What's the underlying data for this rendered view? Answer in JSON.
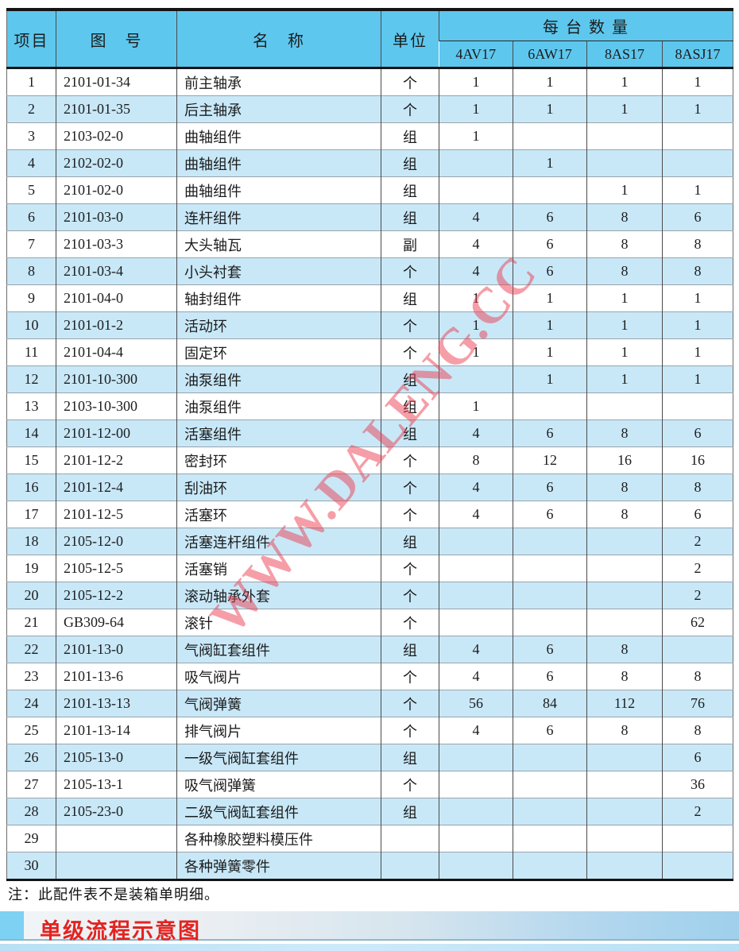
{
  "watermark": "WWW.DALENG.CC",
  "note": "注：此配件表不是装箱单明细。",
  "section_title": "单级流程示意图",
  "colors": {
    "header_blue": "#5ec7ee",
    "stripe_blue": "#c8e8f8",
    "marker_blue": "#7dd2f3",
    "title_red": "#e32320",
    "watermark_red": "rgba(235,62,80,0.5)",
    "bottom_bar_blue": "#bfe3f5"
  },
  "table": {
    "headers": {
      "item": "项目",
      "drawing_no": "图　号",
      "name": "名　称",
      "unit": "单位",
      "qty_group": "每 台 数 量",
      "models": [
        "4AV17",
        "6AW17",
        "8AS17",
        "8ASJ17"
      ]
    },
    "rows": [
      {
        "item": "1",
        "drawing": "2101-01-34",
        "name": "前主轴承",
        "unit": "个",
        "qty": [
          "1",
          "1",
          "1",
          "1"
        ]
      },
      {
        "item": "2",
        "drawing": "2101-01-35",
        "name": "后主轴承",
        "unit": "个",
        "qty": [
          "1",
          "1",
          "1",
          "1"
        ]
      },
      {
        "item": "3",
        "drawing": "2103-02-0",
        "name": "曲轴组件",
        "unit": "组",
        "qty": [
          "1",
          "",
          "",
          ""
        ]
      },
      {
        "item": "4",
        "drawing": "2102-02-0",
        "name": "曲轴组件",
        "unit": "组",
        "qty": [
          "",
          "1",
          "",
          ""
        ]
      },
      {
        "item": "5",
        "drawing": "2101-02-0",
        "name": "曲轴组件",
        "unit": "组",
        "qty": [
          "",
          "",
          "1",
          "1"
        ]
      },
      {
        "item": "6",
        "drawing": "2101-03-0",
        "name": "连杆组件",
        "unit": "组",
        "qty": [
          "4",
          "6",
          "8",
          "6"
        ]
      },
      {
        "item": "7",
        "drawing": "2101-03-3",
        "name": "大头轴瓦",
        "unit": "副",
        "qty": [
          "4",
          "6",
          "8",
          "8"
        ]
      },
      {
        "item": "8",
        "drawing": "2101-03-4",
        "name": "小头衬套",
        "unit": "个",
        "qty": [
          "4",
          "6",
          "8",
          "8"
        ]
      },
      {
        "item": "9",
        "drawing": "2101-04-0",
        "name": "轴封组件",
        "unit": "组",
        "qty": [
          "1",
          "1",
          "1",
          "1"
        ]
      },
      {
        "item": "10",
        "drawing": "2101-01-2",
        "name": "活动环",
        "unit": "个",
        "qty": [
          "1",
          "1",
          "1",
          "1"
        ]
      },
      {
        "item": "11",
        "drawing": "2101-04-4",
        "name": "固定环",
        "unit": "个",
        "qty": [
          "1",
          "1",
          "1",
          "1"
        ]
      },
      {
        "item": "12",
        "drawing": "2101-10-300",
        "name": "油泵组件",
        "unit": "组",
        "qty": [
          "",
          "1",
          "1",
          "1"
        ]
      },
      {
        "item": "13",
        "drawing": "2103-10-300",
        "name": "油泵组件",
        "unit": "组",
        "qty": [
          "1",
          "",
          "",
          ""
        ]
      },
      {
        "item": "14",
        "drawing": "2101-12-00",
        "name": "活塞组件",
        "unit": "组",
        "qty": [
          "4",
          "6",
          "8",
          "6"
        ]
      },
      {
        "item": "15",
        "drawing": "2101-12-2",
        "name": "密封环",
        "unit": "个",
        "qty": [
          "8",
          "12",
          "16",
          "16"
        ]
      },
      {
        "item": "16",
        "drawing": "2101-12-4",
        "name": "刮油环",
        "unit": "个",
        "qty": [
          "4",
          "6",
          "8",
          "8"
        ]
      },
      {
        "item": "17",
        "drawing": "2101-12-5",
        "name": "活塞环",
        "unit": "个",
        "qty": [
          "4",
          "6",
          "8",
          "6"
        ]
      },
      {
        "item": "18",
        "drawing": "2105-12-0",
        "name": "活塞连杆组件",
        "unit": "组",
        "qty": [
          "",
          "",
          "",
          "2"
        ]
      },
      {
        "item": "19",
        "drawing": "2105-12-5",
        "name": "活塞销",
        "unit": "个",
        "qty": [
          "",
          "",
          "",
          "2"
        ]
      },
      {
        "item": "20",
        "drawing": "2105-12-2",
        "name": "滚动轴承外套",
        "unit": "个",
        "qty": [
          "",
          "",
          "",
          "2"
        ]
      },
      {
        "item": "21",
        "drawing": "GB309-64",
        "name": "滚针",
        "unit": "个",
        "qty": [
          "",
          "",
          "",
          "62"
        ]
      },
      {
        "item": "22",
        "drawing": "2101-13-0",
        "name": "气阀缸套组件",
        "unit": "组",
        "qty": [
          "4",
          "6",
          "8",
          ""
        ]
      },
      {
        "item": "23",
        "drawing": "2101-13-6",
        "name": "吸气阀片",
        "unit": "个",
        "qty": [
          "4",
          "6",
          "8",
          "8"
        ]
      },
      {
        "item": "24",
        "drawing": "2101-13-13",
        "name": "气阀弹簧",
        "unit": "个",
        "qty": [
          "56",
          "84",
          "112",
          "76"
        ]
      },
      {
        "item": "25",
        "drawing": "2101-13-14",
        "name": "排气阀片",
        "unit": "个",
        "qty": [
          "4",
          "6",
          "8",
          "8"
        ]
      },
      {
        "item": "26",
        "drawing": "2105-13-0",
        "name": "一级气阀缸套组件",
        "unit": "组",
        "qty": [
          "",
          "",
          "",
          "6"
        ]
      },
      {
        "item": "27",
        "drawing": "2105-13-1",
        "name": "吸气阀弹簧",
        "unit": "个",
        "qty": [
          "",
          "",
          "",
          "36"
        ]
      },
      {
        "item": "28",
        "drawing": "2105-23-0",
        "name": "二级气阀缸套组件",
        "unit": "组",
        "qty": [
          "",
          "",
          "",
          "2"
        ]
      },
      {
        "item": "29",
        "drawing": "",
        "name": "各种橡胶塑料模压件",
        "unit": "",
        "qty": [
          "",
          "",
          "",
          ""
        ]
      },
      {
        "item": "30",
        "drawing": "",
        "name": "各种弹簧零件",
        "unit": "",
        "qty": [
          "",
          "",
          "",
          ""
        ]
      }
    ]
  }
}
